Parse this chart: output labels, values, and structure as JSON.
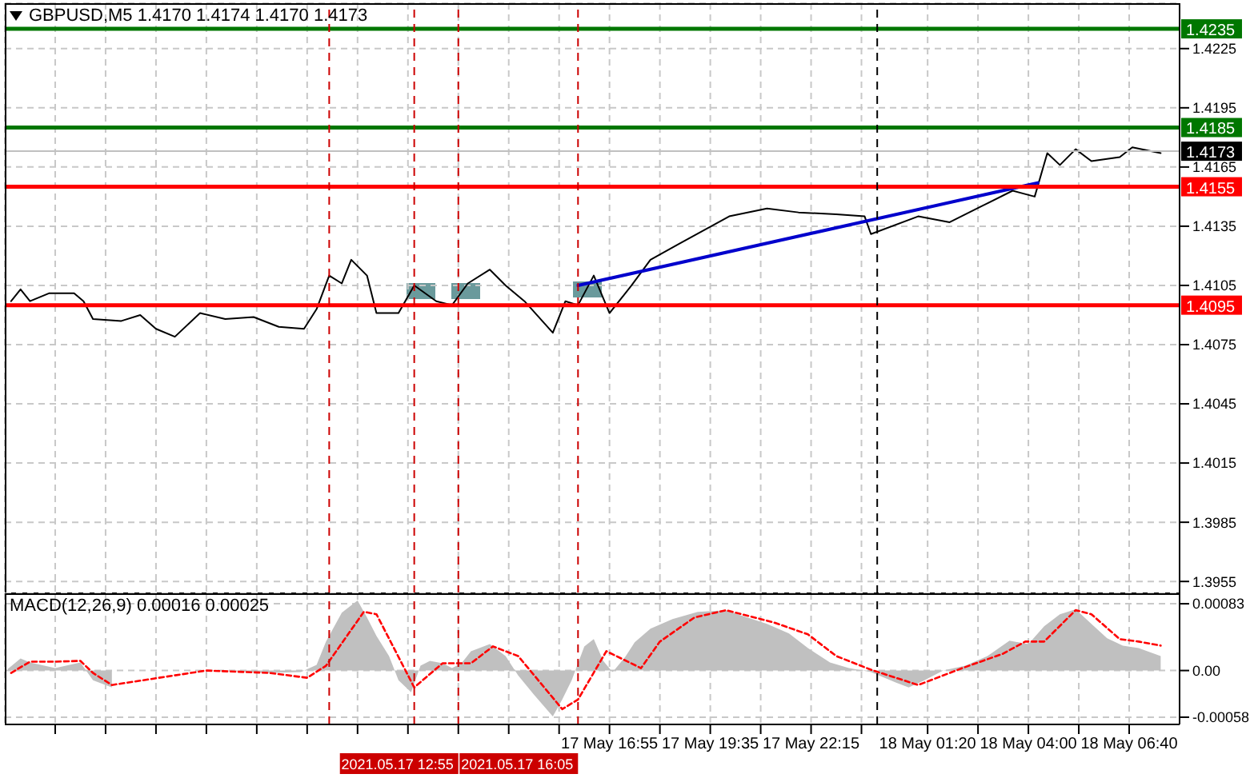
{
  "chart_data": [
    {
      "type": "line",
      "title": "GBPUSD,M5 1.4170 1.4174 1.4170 1.4173",
      "grid": true,
      "tick_labels": "y",
      "xlim": [
        "2021-05-17T00:55",
        "2021-05-18T08:00"
      ],
      "xticks": [
        {
          "value": "2021-05-17T02:15",
          "label": null
        },
        {
          "value": "2021-05-17T03:35",
          "label": null
        },
        {
          "value": "2021-05-17T04:55",
          "label": null
        },
        {
          "value": "2021-05-17T06:15",
          "label": null
        },
        {
          "value": "2021-05-17T07:35",
          "label": null
        },
        {
          "value": "2021-05-17T08:55",
          "label": null
        },
        {
          "value": "2021-05-17T10:15",
          "label": null
        },
        {
          "value": "2021-05-17T11:35",
          "label": null
        },
        {
          "value": "2021-05-17T12:55",
          "label": null
        },
        {
          "value": "2021-05-17T14:15",
          "label": null
        },
        {
          "value": "2021-05-17T15:35",
          "label": null
        },
        {
          "value": "2021-05-17T16:55",
          "label": null
        },
        {
          "value": "2021-05-17T18:15",
          "label": null
        },
        {
          "value": "2021-05-17T19:35",
          "label": null
        },
        {
          "value": "2021-05-17T20:55",
          "label": null
        },
        {
          "value": "2021-05-17T22:15",
          "label": null
        },
        {
          "value": "2021-05-17T23:35",
          "label": null
        },
        {
          "value": "2021-05-18T01:20",
          "label": null
        },
        {
          "value": "2021-05-18T02:40",
          "label": null
        },
        {
          "value": "2021-05-18T04:00",
          "label": null
        },
        {
          "value": "2021-05-18T05:20",
          "label": null
        },
        {
          "value": "2021-05-18T06:40",
          "label": null
        }
      ],
      "ylim": [
        1.3949,
        1.4248
      ],
      "yticks": [
        1.3955,
        1.3985,
        1.4015,
        1.4045,
        1.4075,
        1.4105,
        1.4135,
        1.4165,
        1.4195,
        1.4225
      ],
      "series": [
        {
          "color": "#000000",
          "x": [
            "2021-05-17T01:05",
            "2021-05-17T01:20",
            "2021-05-17T01:35",
            "2021-05-17T02:05",
            "2021-05-17T02:45",
            "2021-05-17T03:00",
            "2021-05-17T03:15",
            "2021-05-17T04:00",
            "2021-05-17T04:30",
            "2021-05-17T04:55",
            "2021-05-17T05:25",
            "2021-05-17T06:05",
            "2021-05-17T06:45",
            "2021-05-17T07:30",
            "2021-05-17T08:10",
            "2021-05-17T08:50",
            "2021-05-17T09:10",
            "2021-05-17T09:30",
            "2021-05-17T09:50",
            "2021-05-17T10:05",
            "2021-05-17T10:30",
            "2021-05-17T10:45",
            "2021-05-17T11:20",
            "2021-05-17T11:45",
            "2021-05-17T12:20",
            "2021-05-17T12:45",
            "2021-05-17T13:10",
            "2021-05-17T13:45",
            "2021-05-17T14:10",
            "2021-05-17T14:40",
            "2021-05-17T15:25",
            "2021-05-17T15:45",
            "2021-05-17T16:05",
            "2021-05-17T16:30",
            "2021-05-17T16:55",
            "2021-05-17T17:20",
            "2021-05-17T17:30",
            "2021-05-17T18:00",
            "2021-05-17T18:45",
            "2021-05-17T19:25",
            "2021-05-17T20:05",
            "2021-05-17T21:05",
            "2021-05-17T21:55",
            "2021-05-17T22:55",
            "2021-05-17T23:40",
            "2021-05-17T23:50",
            "2021-05-18T01:05",
            "2021-05-18T01:55",
            "2021-05-18T02:45",
            "2021-05-18T03:35",
            "2021-05-18T04:10",
            "2021-05-18T04:30",
            "2021-05-18T04:50",
            "2021-05-18T05:15",
            "2021-05-18T05:40",
            "2021-05-18T06:25",
            "2021-05-18T06:45",
            "2021-05-18T07:30"
          ],
          "values": [
            1.4097,
            1.4103,
            1.4097,
            1.4101,
            1.4101,
            1.4097,
            1.4088,
            1.4087,
            1.409,
            1.4083,
            1.4079,
            1.4091,
            1.4088,
            1.4089,
            1.4084,
            1.4083,
            1.4093,
            1.411,
            1.4106,
            1.4118,
            1.411,
            1.4091,
            1.4091,
            1.4105,
            1.4097,
            1.4095,
            1.4106,
            1.4113,
            1.4105,
            1.4097,
            1.4081,
            1.4097,
            1.4095,
            1.411,
            1.4091,
            1.4101,
            1.4105,
            1.4118,
            1.4126,
            1.4133,
            1.414,
            1.4144,
            1.4142,
            1.4141,
            1.414,
            1.4131,
            1.414,
            1.4137,
            1.4145,
            1.4153,
            1.415,
            1.4172,
            1.4166,
            1.4174,
            1.4168,
            1.417,
            1.4175,
            1.4172
          ]
        },
        {
          "color": "#0000cc",
          "x": [
            "2021-05-17T16:05",
            "2021-05-18T04:15"
          ],
          "values": [
            1.4105,
            1.4157
          ]
        }
      ],
      "ref_lines": [
        {
          "axis": "y",
          "value": 1.4235,
          "label": "1.4235",
          "color": "#007700"
        },
        {
          "axis": "y",
          "value": 1.4185,
          "label": "1.4185",
          "color": "#007700"
        },
        {
          "axis": "y",
          "value": 1.4173,
          "label": "1.4173",
          "color": "#c0c0c0"
        },
        {
          "axis": "y",
          "value": 1.4155,
          "label": "1.4155",
          "color": "#ff0000"
        },
        {
          "axis": "y",
          "value": 1.4095,
          "label": "1.4095",
          "color": "#ff0000"
        },
        {
          "axis": "x",
          "value": "2021-05-17T09:30",
          "color": "#cc0000",
          "line_style": "dashed"
        },
        {
          "axis": "x",
          "value": "2021-05-17T11:45",
          "color": "#cc0000",
          "line_style": "dashed"
        },
        {
          "axis": "x",
          "value": "2021-05-17T12:55",
          "color": "#cc0000",
          "line_style": "dashed"
        },
        {
          "axis": "x",
          "value": "2021-05-17T16:05",
          "color": "#cc0000",
          "line_style": "dashed"
        },
        {
          "axis": "x",
          "value": "2021-05-18T00:00",
          "color": "#000000",
          "line_style": "dashed"
        }
      ]
    },
    {
      "type": "area",
      "title": "MACD(12,26,9) 0.00016 0.00025",
      "grid": true,
      "xlim": [
        "2021-05-17T00:55",
        "2021-05-18T08:00"
      ],
      "xticks": [
        {
          "value": "2021-05-17T02:15",
          "label": null
        },
        {
          "value": "2021-05-17T03:35",
          "label": null
        },
        {
          "value": "2021-05-17T04:55",
          "label": null
        },
        {
          "value": "2021-05-17T06:15",
          "label": null
        },
        {
          "value": "2021-05-17T07:35",
          "label": null
        },
        {
          "value": "2021-05-17T08:55",
          "label": null
        },
        {
          "value": "2021-05-17T10:15",
          "label": null
        },
        {
          "value": "2021-05-17T11:35",
          "label": null
        },
        {
          "value": "2021-05-17T12:55",
          "label": null
        },
        {
          "value": "2021-05-17T14:15",
          "label": null
        },
        {
          "value": "2021-05-17T15:35",
          "label": null
        },
        {
          "value": "2021-05-17T16:55",
          "label": "17 May 16:55"
        },
        {
          "value": "2021-05-17T18:15",
          "label": null
        },
        {
          "value": "2021-05-17T19:35",
          "label": "17 May 19:35"
        },
        {
          "value": "2021-05-17T20:55",
          "label": null
        },
        {
          "value": "2021-05-17T22:15",
          "label": "17 May 22:15"
        },
        {
          "value": "2021-05-17T23:35",
          "label": null
        },
        {
          "value": "2021-05-18T01:20",
          "label": "18 May 01:20"
        },
        {
          "value": "2021-05-18T02:40",
          "label": null
        },
        {
          "value": "2021-05-18T04:00",
          "label": "18 May 04:00"
        },
        {
          "value": "2021-05-18T05:20",
          "label": null
        },
        {
          "value": "2021-05-18T06:40",
          "label": "18 May 06:40"
        }
      ],
      "ylim": [
        -0.00067,
        0.00096
      ],
      "yticks": [
        -0.00058,
        {
          "value": 0,
          "label": "0.00"
        },
        0.00083
      ],
      "series": [
        {
          "color": "#c0c0c0",
          "x": [
            "2021-05-17T01:00",
            "2021-05-17T01:20",
            "2021-05-17T01:35",
            "2021-05-17T02:15",
            "2021-05-17T02:55",
            "2021-05-17T03:15",
            "2021-05-17T03:45",
            "2021-05-17T04:10",
            "2021-05-17T05:45",
            "2021-05-17T06:15",
            "2021-05-17T06:40",
            "2021-05-17T07:55",
            "2021-05-17T08:45",
            "2021-05-17T09:10",
            "2021-05-17T09:25",
            "2021-05-17T09:50",
            "2021-05-17T10:15",
            "2021-05-17T10:30",
            "2021-05-17T10:45",
            "2021-05-17T11:05",
            "2021-05-17T11:20",
            "2021-05-17T11:40",
            "2021-05-17T11:55",
            "2021-05-17T12:10",
            "2021-05-17T12:30",
            "2021-05-17T12:45",
            "2021-05-17T13:00",
            "2021-05-17T13:15",
            "2021-05-17T13:45",
            "2021-05-17T14:10",
            "2021-05-17T14:30",
            "2021-05-17T14:55",
            "2021-05-17T15:25",
            "2021-05-17T15:40",
            "2021-05-17T15:55",
            "2021-05-17T16:15",
            "2021-05-17T16:30",
            "2021-05-17T16:45",
            "2021-05-17T17:00",
            "2021-05-17T17:20",
            "2021-05-17T17:35",
            "2021-05-17T18:00",
            "2021-05-17T18:35",
            "2021-05-17T19:15",
            "2021-05-17T20:00",
            "2021-05-17T20:30",
            "2021-05-17T21:05",
            "2021-05-17T21:40",
            "2021-05-17T22:10",
            "2021-05-17T22:45",
            "2021-05-17T23:15",
            "2021-05-17T23:50",
            "2021-05-18T00:30",
            "2021-05-18T00:50",
            "2021-05-18T01:15",
            "2021-05-18T01:45",
            "2021-05-18T02:20",
            "2021-05-18T02:55",
            "2021-05-18T03:30",
            "2021-05-18T04:00",
            "2021-05-18T04:25",
            "2021-05-18T04:50",
            "2021-05-18T05:15",
            "2021-05-18T05:40",
            "2021-05-18T06:05",
            "2021-05-18T06:30",
            "2021-05-18T06:55",
            "2021-05-18T07:30"
          ],
          "values": [
            2e-05,
            0.00015,
            0.0001,
            3e-05,
            0.0001,
            -0.00012,
            -0.00021,
            null,
            null,
            0,
            0,
            -3e-05,
            -2e-05,
            7e-05,
            0.00036,
            0.00072,
            0.00087,
            0.00066,
            0.00043,
            0.00018,
            -0.00012,
            -0.00027,
            6e-05,
            0.00012,
            9e-05,
            3e-05,
            9e-05,
            0.00024,
            0.00033,
            0.00018,
            -6e-05,
            -0.0003,
            -0.00057,
            -0.00036,
            -0.00012,
            0.0003,
            0.00039,
            0.00012,
            -2e-05,
            0.00017,
            0.00035,
            0.00052,
            0.00064,
            0.00073,
            0.00075,
            0.00067,
            0.00058,
            0.00046,
            0.00028,
            0.0001,
            3e-05,
            -2e-05,
            -0.00015,
            -0.00021,
            -0.00012,
            0,
            6e-05,
            0.00018,
            0.00037,
            0.00033,
            0.00055,
            0.0007,
            0.00076,
            0.00058,
            0.0004,
            0.00031,
            0.00028,
            0.00018
          ]
        },
        {
          "type": "line",
          "color": "#ff0000",
          "line_style": "dashed",
          "x": [
            "2021-05-17T01:05",
            "2021-05-17T01:35",
            "2021-05-17T02:15",
            "2021-05-17T02:55",
            "2021-05-17T03:15",
            "2021-05-17T03:45",
            "2021-05-17T06:15",
            "2021-05-17T07:55",
            "2021-05-17T08:55",
            "2021-05-17T09:25",
            "2021-05-17T10:25",
            "2021-05-17T10:45",
            "2021-05-17T11:45",
            "2021-05-17T12:30",
            "2021-05-17T13:15",
            "2021-05-17T13:50",
            "2021-05-17T14:30",
            "2021-05-17T15:40",
            "2021-05-17T16:05",
            "2021-05-17T16:50",
            "2021-05-17T17:45",
            "2021-05-17T18:15",
            "2021-05-17T19:10",
            "2021-05-17T20:00",
            "2021-05-17T21:15",
            "2021-05-17T22:10",
            "2021-05-17T22:55",
            "2021-05-17T23:50",
            "2021-05-18T01:05",
            "2021-05-18T02:15",
            "2021-05-18T03:20",
            "2021-05-18T03:55",
            "2021-05-18T04:25",
            "2021-05-18T05:15",
            "2021-05-18T05:40",
            "2021-05-18T06:25",
            "2021-05-18T06:55",
            "2021-05-18T07:30"
          ],
          "values": [
            -3e-05,
            0.00011,
            0.00011,
            0.00012,
            -3e-05,
            -0.00018,
            0,
            -3e-05,
            -9e-05,
            6e-05,
            0.00073,
            0.0007,
            -0.00021,
            9e-05,
            9e-05,
            0.0003,
            0.00018,
            -0.00048,
            -0.00036,
            0.00024,
            3e-05,
            0.00036,
            0.00066,
            0.00075,
            0.0006,
            0.00045,
            0.00018,
            1e-05,
            -0.00018,
            3e-05,
            0.00021,
            0.00036,
            0.00036,
            0.00075,
            0.0007,
            0.00039,
            0.00036,
            0.00031
          ]
        }
      ],
      "ref_lines": [
        {
          "axis": "x",
          "value": "2021-05-17T09:30",
          "color": "#cc0000",
          "line_style": "dashed"
        },
        {
          "axis": "x",
          "value": "2021-05-17T11:45",
          "color": "#cc0000",
          "line_style": "dashed"
        },
        {
          "axis": "x",
          "value": "2021-05-17T12:55",
          "label": "2021.05.17 12:55",
          "color": "#cc0000",
          "line_style": "dashed"
        },
        {
          "axis": "x",
          "value": "2021-05-17T16:05",
          "label": "2021.05.17 16:05",
          "color": "#cc0000",
          "line_style": "dashed"
        },
        {
          "axis": "x",
          "value": "2021-05-18T00:00",
          "color": "#000000",
          "line_style": "dashed"
        }
      ]
    }
  ]
}
